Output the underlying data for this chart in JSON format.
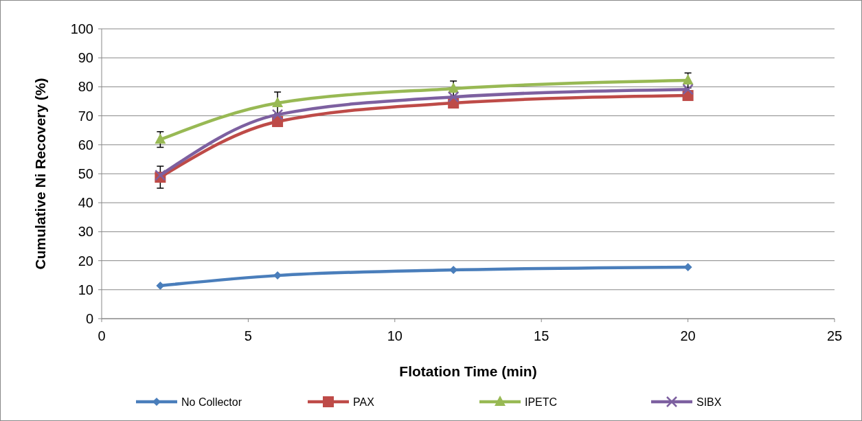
{
  "chart_data": {
    "type": "line",
    "xlabel": "Flotation Time (min)",
    "ylabel": "Cumulative Ni Recovery (%)",
    "x": [
      2,
      6,
      12,
      20
    ],
    "series": [
      {
        "name": "No Collector",
        "color": "#4a7ebb",
        "values": [
          11.4,
          14.9,
          16.8,
          17.8
        ],
        "marker": "diamond"
      },
      {
        "name": "PAX",
        "color": "#be4b48",
        "values": [
          48.8,
          68,
          74.4,
          77
        ],
        "marker": "square",
        "errors": [
          3.8,
          null,
          null,
          null
        ]
      },
      {
        "name": "IPETC",
        "color": "#98b954",
        "values": [
          61.8,
          74.4,
          79.4,
          82.2
        ],
        "marker": "triangle",
        "errors": [
          2.7,
          3.8,
          2.6,
          2.6
        ]
      },
      {
        "name": "SIBX",
        "color": "#7d60a0",
        "values": [
          49.5,
          70.4,
          76.5,
          79.1
        ],
        "marker": "cross"
      }
    ],
    "xlim": [
      0,
      25
    ],
    "xticks": [
      0,
      5,
      10,
      15,
      20,
      25
    ],
    "ylim": [
      0,
      100
    ],
    "yticks": [
      0,
      10,
      20,
      30,
      40,
      50,
      60,
      70,
      80,
      90,
      100
    ],
    "grid": "y",
    "legend": "bottom"
  }
}
